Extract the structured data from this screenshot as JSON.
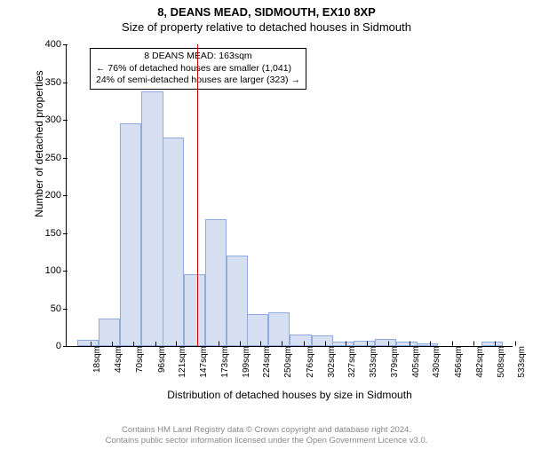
{
  "title_main": "8, DEANS MEAD, SIDMOUTH, EX10 8XP",
  "title_sub": "Size of property relative to detached houses in Sidmouth",
  "ylabel": "Number of detached properties",
  "xlabel": "Distribution of detached houses by size in Sidmouth",
  "footer1": "Contains HM Land Registry data © Crown copyright and database right 2024.",
  "footer2": "Contains public sector information licensed under the Open Government Licence v3.0.",
  "chart": {
    "type": "histogram",
    "ylim": [
      0,
      400
    ],
    "yticks": [
      0,
      50,
      100,
      150,
      200,
      250,
      300,
      350,
      400
    ],
    "bar_fill": "#d6e0f2",
    "bar_stroke": "#8faadc",
    "vline_color": "#cc0000",
    "vline_x_sqm": 163,
    "bars": [
      {
        "label": "18sqm",
        "x": 18,
        "value": 8
      },
      {
        "label": "44sqm",
        "x": 44,
        "value": 37
      },
      {
        "label": "70sqm",
        "x": 70,
        "value": 295
      },
      {
        "label": "96sqm",
        "x": 96,
        "value": 338
      },
      {
        "label": "121sqm",
        "x": 121,
        "value": 277
      },
      {
        "label": "147sqm",
        "x": 147,
        "value": 95
      },
      {
        "label": "173sqm",
        "x": 173,
        "value": 168
      },
      {
        "label": "199sqm",
        "x": 199,
        "value": 120
      },
      {
        "label": "224sqm",
        "x": 224,
        "value": 42
      },
      {
        "label": "250sqm",
        "x": 250,
        "value": 45
      },
      {
        "label": "276sqm",
        "x": 276,
        "value": 15
      },
      {
        "label": "302sqm",
        "x": 302,
        "value": 14
      },
      {
        "label": "327sqm",
        "x": 327,
        "value": 6
      },
      {
        "label": "353sqm",
        "x": 353,
        "value": 7
      },
      {
        "label": "379sqm",
        "x": 379,
        "value": 9
      },
      {
        "label": "405sqm",
        "x": 405,
        "value": 6
      },
      {
        "label": "430sqm",
        "x": 430,
        "value": 4
      },
      {
        "label": "456sqm",
        "x": 456,
        "value": 0
      },
      {
        "label": "482sqm",
        "x": 482,
        "value": 0
      },
      {
        "label": "508sqm",
        "x": 508,
        "value": 6
      },
      {
        "label": "533sqm",
        "x": 533,
        "value": 0
      }
    ],
    "x_min": 5,
    "x_max": 546
  },
  "infobox": {
    "line1": "8 DEANS MEAD: 163sqm",
    "line2": "← 76% of detached houses are smaller (1,041)",
    "line3": "24% of semi-detached houses are larger (323) →"
  }
}
